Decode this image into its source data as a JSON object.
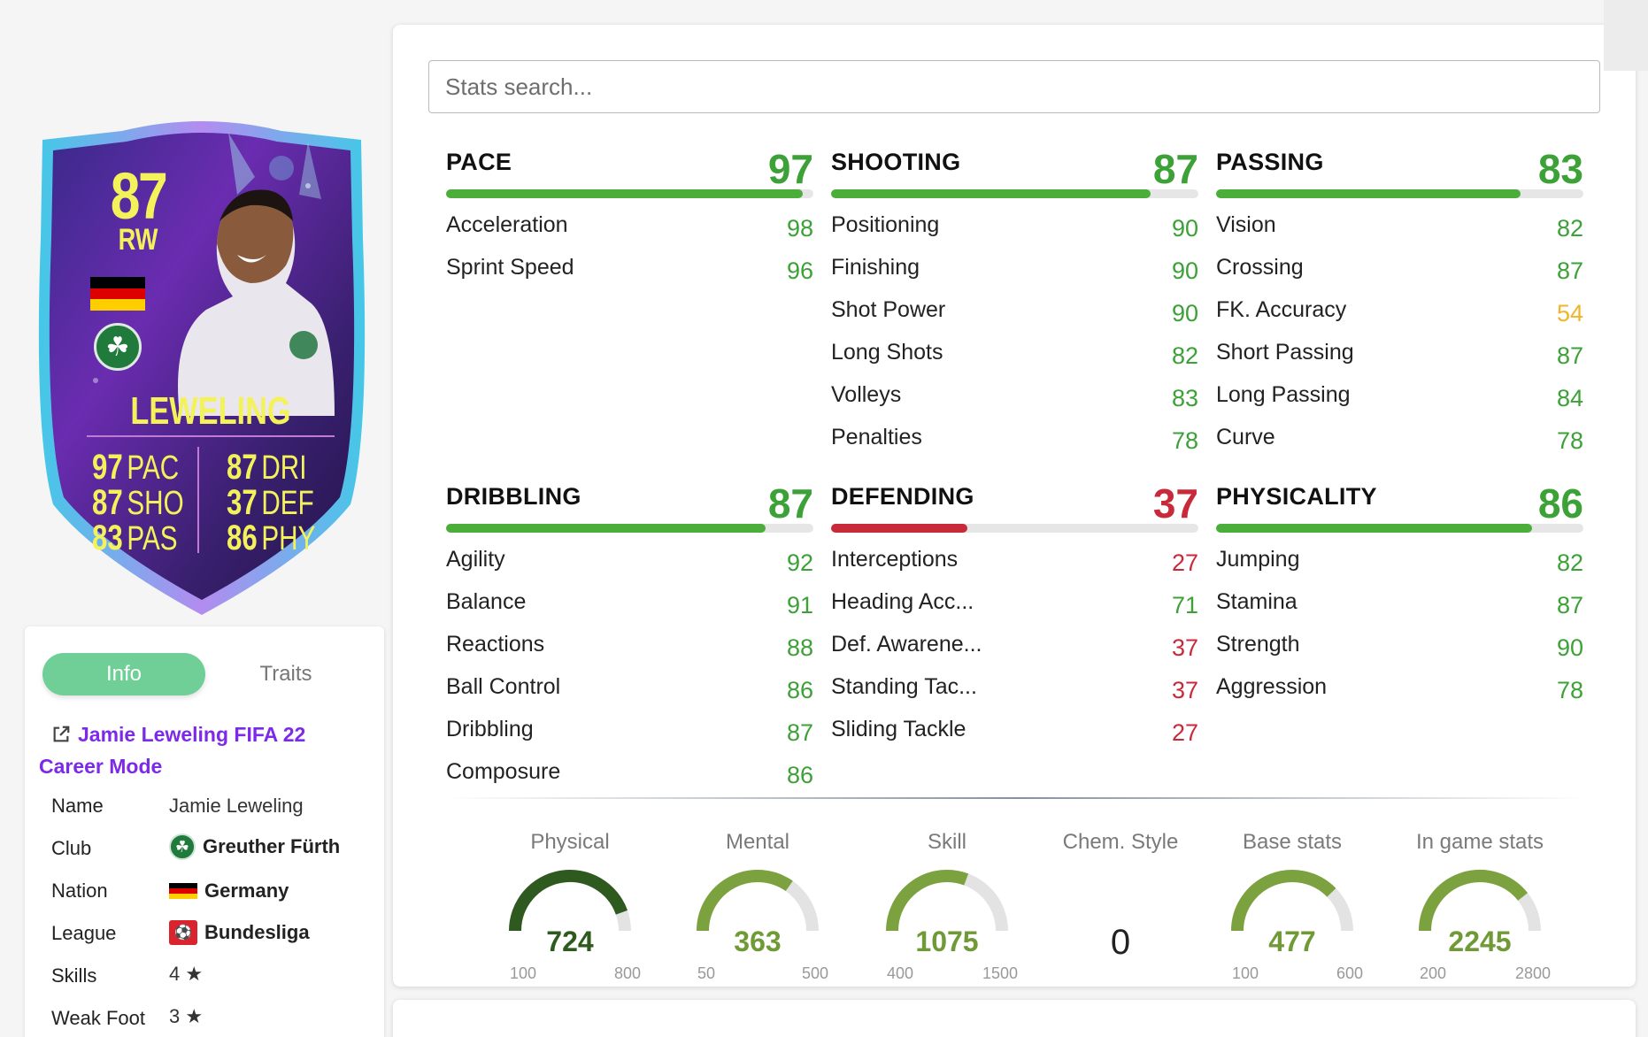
{
  "card": {
    "rating": "87",
    "position": "RW",
    "name": "LEWELING",
    "stats_left": [
      {
        "value": "97",
        "label": "PAC"
      },
      {
        "value": "87",
        "label": "SHO"
      },
      {
        "value": "83",
        "label": "PAS"
      }
    ],
    "stats_right": [
      {
        "value": "87",
        "label": "DRI"
      },
      {
        "value": "37",
        "label": "DEF"
      },
      {
        "value": "86",
        "label": "PHY"
      }
    ],
    "club_icon": "shamrock-icon",
    "flag_colors": [
      "#000000",
      "#dd0000",
      "#ffce00"
    ]
  },
  "info_panel": {
    "tabs": [
      "Info",
      "Traits"
    ],
    "career_link": "Jamie Leweling FIFA 22 Career Mode",
    "rows": [
      {
        "label": "Name",
        "value": "Jamie Leweling"
      },
      {
        "label": "Club",
        "value": "Greuther Fürth"
      },
      {
        "label": "Nation",
        "value": "Germany"
      },
      {
        "label": "League",
        "value": "Bundesliga"
      },
      {
        "label": "Skills",
        "value": "4 ★"
      },
      {
        "label": "Weak Foot",
        "value": "3 ★"
      }
    ]
  },
  "search": {
    "placeholder": "Stats search..."
  },
  "colors": {
    "green": "#3ca137",
    "red": "#c92a39",
    "amber": "#f0b429",
    "bar_green": "#4cae3a",
    "bar_red": "#c92a39"
  },
  "groups": [
    {
      "title": "PACE",
      "value": 97,
      "attrs": [
        {
          "name": "Acceleration",
          "value": 98
        },
        {
          "name": "Sprint Speed",
          "value": 96
        }
      ]
    },
    {
      "title": "SHOOTING",
      "value": 87,
      "attrs": [
        {
          "name": "Positioning",
          "value": 90
        },
        {
          "name": "Finishing",
          "value": 90
        },
        {
          "name": "Shot Power",
          "value": 90
        },
        {
          "name": "Long Shots",
          "value": 82
        },
        {
          "name": "Volleys",
          "value": 83
        },
        {
          "name": "Penalties",
          "value": 78
        }
      ]
    },
    {
      "title": "PASSING",
      "value": 83,
      "attrs": [
        {
          "name": "Vision",
          "value": 82
        },
        {
          "name": "Crossing",
          "value": 87
        },
        {
          "name": "FK. Accuracy",
          "value": 54
        },
        {
          "name": "Short Passing",
          "value": 87
        },
        {
          "name": "Long Passing",
          "value": 84
        },
        {
          "name": "Curve",
          "value": 78
        }
      ]
    },
    {
      "title": "DRIBBLING",
      "value": 87,
      "attrs": [
        {
          "name": "Agility",
          "value": 92
        },
        {
          "name": "Balance",
          "value": 91
        },
        {
          "name": "Reactions",
          "value": 88
        },
        {
          "name": "Ball Control",
          "value": 86
        },
        {
          "name": "Dribbling",
          "value": 87
        },
        {
          "name": "Composure",
          "value": 86
        }
      ]
    },
    {
      "title": "DEFENDING",
      "value": 37,
      "attrs": [
        {
          "name": "Interceptions",
          "value": 27
        },
        {
          "name": "Heading Acc...",
          "value": 71
        },
        {
          "name": "Def. Awarene...",
          "value": 37
        },
        {
          "name": "Standing Tac...",
          "value": 37
        },
        {
          "name": "Sliding Tackle",
          "value": 27
        }
      ]
    },
    {
      "title": "PHYSICALITY",
      "value": 86,
      "attrs": [
        {
          "name": "Jumping",
          "value": 82
        },
        {
          "name": "Stamina",
          "value": 87
        },
        {
          "name": "Strength",
          "value": 90
        },
        {
          "name": "Aggression",
          "value": 78
        }
      ]
    }
  ],
  "gauges": [
    {
      "label": "Physical",
      "value": 724,
      "min": 100,
      "max": 800,
      "color": "#2f5a1f"
    },
    {
      "label": "Mental",
      "value": 363,
      "min": 50,
      "max": 500,
      "color": "#7ba23f"
    },
    {
      "label": "Skill",
      "value": 1075,
      "min": 400,
      "max": 1500,
      "color": "#7ba23f"
    },
    {
      "label": "Chem. Style",
      "value": "0"
    },
    {
      "label": "Base stats",
      "value": 477,
      "min": 100,
      "max": 600,
      "color": "#7ba23f"
    },
    {
      "label": "In game stats",
      "value": 2245,
      "min": 200,
      "max": 2800,
      "color": "#7ba23f"
    }
  ]
}
